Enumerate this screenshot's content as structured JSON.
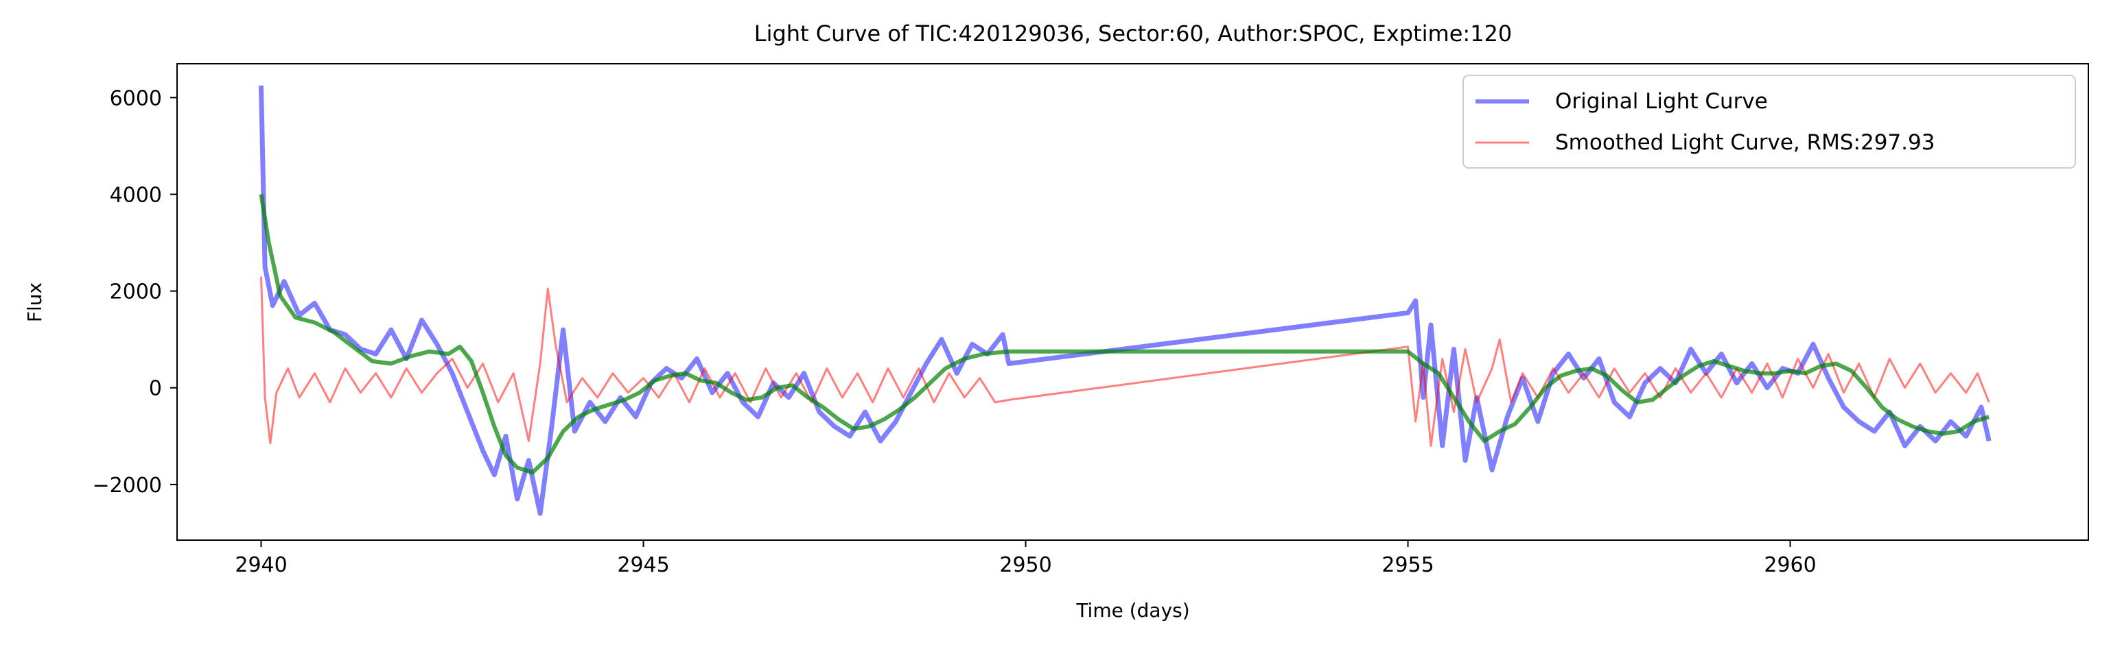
{
  "chart_data": {
    "type": "line",
    "title": "Light Curve of TIC:420129036, Sector:60, Author:SPOC, Exptime:120",
    "xlabel": "Time (days)",
    "ylabel": "Flux",
    "xlim": [
      2938.9,
      2963.9
    ],
    "ylim": [
      -3150,
      6700
    ],
    "xticks": [
      2940,
      2945,
      2950,
      2955,
      2960
    ],
    "yticks": [
      -2000,
      0,
      2000,
      4000,
      6000
    ],
    "xtick_labels": [
      "2940",
      "2945",
      "2950",
      "2955",
      "2960"
    ],
    "ytick_labels": [
      "−2000",
      "0",
      "2000",
      "4000",
      "6000"
    ],
    "grid": false,
    "legend_position": "top-right",
    "legend": [
      {
        "label": "Original Light Curve",
        "color": "#7777f2"
      },
      {
        "label": "Smoothed Light Curve, RMS:297.93",
        "color": "#f48080"
      }
    ],
    "series": [
      {
        "name": "Original Light Curve",
        "color": "#0000ff",
        "opacity": 0.5,
        "points": [
          [
            2940.0,
            6250
          ],
          [
            2940.05,
            2500
          ],
          [
            2940.15,
            1700
          ],
          [
            2940.3,
            2200
          ],
          [
            2940.5,
            1500
          ],
          [
            2940.7,
            1750
          ],
          [
            2940.9,
            1200
          ],
          [
            2941.1,
            1100
          ],
          [
            2941.3,
            800
          ],
          [
            2941.5,
            700
          ],
          [
            2941.7,
            1200
          ],
          [
            2941.9,
            600
          ],
          [
            2942.1,
            1400
          ],
          [
            2942.3,
            900
          ],
          [
            2942.5,
            300
          ],
          [
            2942.7,
            -500
          ],
          [
            2942.9,
            -1300
          ],
          [
            2943.05,
            -1800
          ],
          [
            2943.2,
            -1000
          ],
          [
            2943.35,
            -2300
          ],
          [
            2943.5,
            -1500
          ],
          [
            2943.65,
            -2600
          ],
          [
            2943.8,
            -800
          ],
          [
            2943.95,
            1200
          ],
          [
            2944.1,
            -900
          ],
          [
            2944.3,
            -300
          ],
          [
            2944.5,
            -700
          ],
          [
            2944.7,
            -200
          ],
          [
            2944.9,
            -600
          ],
          [
            2945.1,
            100
          ],
          [
            2945.3,
            400
          ],
          [
            2945.5,
            200
          ],
          [
            2945.7,
            600
          ],
          [
            2945.9,
            -100
          ],
          [
            2946.1,
            300
          ],
          [
            2946.3,
            -300
          ],
          [
            2946.5,
            -600
          ],
          [
            2946.7,
            100
          ],
          [
            2946.9,
            -200
          ],
          [
            2947.1,
            300
          ],
          [
            2947.3,
            -500
          ],
          [
            2947.5,
            -800
          ],
          [
            2947.7,
            -1000
          ],
          [
            2947.9,
            -500
          ],
          [
            2948.1,
            -1100
          ],
          [
            2948.3,
            -700
          ],
          [
            2948.5,
            -100
          ],
          [
            2948.7,
            500
          ],
          [
            2948.9,
            1000
          ],
          [
            2949.1,
            300
          ],
          [
            2949.3,
            900
          ],
          [
            2949.5,
            700
          ],
          [
            2949.7,
            1100
          ],
          [
            2949.78,
            500
          ],
          [
            2955.0,
            1550
          ],
          [
            2955.1,
            1800
          ],
          [
            2955.2,
            -200
          ],
          [
            2955.3,
            1300
          ],
          [
            2955.45,
            -1200
          ],
          [
            2955.6,
            800
          ],
          [
            2955.75,
            -1500
          ],
          [
            2955.9,
            -200
          ],
          [
            2956.1,
            -1700
          ],
          [
            2956.3,
            -600
          ],
          [
            2956.5,
            200
          ],
          [
            2956.7,
            -700
          ],
          [
            2956.9,
            300
          ],
          [
            2957.1,
            700
          ],
          [
            2957.3,
            200
          ],
          [
            2957.5,
            600
          ],
          [
            2957.7,
            -300
          ],
          [
            2957.9,
            -600
          ],
          [
            2958.1,
            100
          ],
          [
            2958.3,
            400
          ],
          [
            2958.5,
            100
          ],
          [
            2958.7,
            800
          ],
          [
            2958.9,
            300
          ],
          [
            2959.1,
            700
          ],
          [
            2959.3,
            100
          ],
          [
            2959.5,
            500
          ],
          [
            2959.7,
            0
          ],
          [
            2959.9,
            400
          ],
          [
            2960.1,
            300
          ],
          [
            2960.3,
            900
          ],
          [
            2960.5,
            200
          ],
          [
            2960.7,
            -400
          ],
          [
            2960.9,
            -700
          ],
          [
            2961.1,
            -900
          ],
          [
            2961.3,
            -500
          ],
          [
            2961.5,
            -1200
          ],
          [
            2961.7,
            -800
          ],
          [
            2961.9,
            -1100
          ],
          [
            2962.1,
            -700
          ],
          [
            2962.3,
            -1000
          ],
          [
            2962.5,
            -400
          ],
          [
            2962.6,
            -1100
          ]
        ]
      },
      {
        "name": "Smoothed Light Curve, RMS:297.93",
        "color": "#ff0000",
        "opacity": 0.5,
        "points": [
          [
            2940.0,
            2300
          ],
          [
            2940.05,
            -200
          ],
          [
            2940.12,
            -1150
          ],
          [
            2940.2,
            -100
          ],
          [
            2940.35,
            400
          ],
          [
            2940.5,
            -200
          ],
          [
            2940.7,
            300
          ],
          [
            2940.9,
            -300
          ],
          [
            2941.1,
            400
          ],
          [
            2941.3,
            -100
          ],
          [
            2941.5,
            300
          ],
          [
            2941.7,
            -200
          ],
          [
            2941.9,
            400
          ],
          [
            2942.1,
            -100
          ],
          [
            2942.3,
            300
          ],
          [
            2942.5,
            600
          ],
          [
            2942.7,
            0
          ],
          [
            2942.9,
            500
          ],
          [
            2943.1,
            -300
          ],
          [
            2943.3,
            300
          ],
          [
            2943.5,
            -1100
          ],
          [
            2943.65,
            500
          ],
          [
            2943.75,
            2050
          ],
          [
            2943.85,
            900
          ],
          [
            2944.0,
            -300
          ],
          [
            2944.2,
            200
          ],
          [
            2944.4,
            -200
          ],
          [
            2944.6,
            300
          ],
          [
            2944.8,
            -100
          ],
          [
            2945.0,
            200
          ],
          [
            2945.2,
            -200
          ],
          [
            2945.4,
            300
          ],
          [
            2945.6,
            -300
          ],
          [
            2945.8,
            400
          ],
          [
            2946.0,
            -200
          ],
          [
            2946.2,
            300
          ],
          [
            2946.4,
            -300
          ],
          [
            2946.6,
            400
          ],
          [
            2946.8,
            -200
          ],
          [
            2947.0,
            300
          ],
          [
            2947.2,
            -300
          ],
          [
            2947.4,
            400
          ],
          [
            2947.6,
            -200
          ],
          [
            2947.8,
            300
          ],
          [
            2948.0,
            -300
          ],
          [
            2948.2,
            400
          ],
          [
            2948.4,
            -200
          ],
          [
            2948.6,
            400
          ],
          [
            2948.8,
            -300
          ],
          [
            2949.0,
            300
          ],
          [
            2949.2,
            -200
          ],
          [
            2949.4,
            200
          ],
          [
            2949.6,
            -300
          ],
          [
            2949.78,
            -250
          ],
          [
            2955.0,
            850
          ],
          [
            2955.1,
            -700
          ],
          [
            2955.2,
            500
          ],
          [
            2955.3,
            -1200
          ],
          [
            2955.45,
            600
          ],
          [
            2955.6,
            -500
          ],
          [
            2955.75,
            800
          ],
          [
            2955.9,
            -300
          ],
          [
            2956.1,
            400
          ],
          [
            2956.2,
            1000
          ],
          [
            2956.35,
            -300
          ],
          [
            2956.5,
            300
          ],
          [
            2956.7,
            -200
          ],
          [
            2956.9,
            400
          ],
          [
            2957.1,
            -100
          ],
          [
            2957.3,
            300
          ],
          [
            2957.5,
            -200
          ],
          [
            2957.7,
            400
          ],
          [
            2957.9,
            -100
          ],
          [
            2958.1,
            300
          ],
          [
            2958.3,
            -200
          ],
          [
            2958.5,
            400
          ],
          [
            2958.7,
            -100
          ],
          [
            2958.9,
            300
          ],
          [
            2959.1,
            -200
          ],
          [
            2959.3,
            400
          ],
          [
            2959.5,
            -100
          ],
          [
            2959.7,
            500
          ],
          [
            2959.9,
            -200
          ],
          [
            2960.1,
            600
          ],
          [
            2960.3,
            0
          ],
          [
            2960.5,
            700
          ],
          [
            2960.7,
            -100
          ],
          [
            2960.9,
            500
          ],
          [
            2961.1,
            -200
          ],
          [
            2961.3,
            600
          ],
          [
            2961.5,
            0
          ],
          [
            2961.7,
            500
          ],
          [
            2961.9,
            -100
          ],
          [
            2962.1,
            300
          ],
          [
            2962.3,
            -100
          ],
          [
            2962.45,
            300
          ],
          [
            2962.6,
            -300
          ]
        ]
      },
      {
        "name": "",
        "color": "#008000",
        "opacity": 0.7,
        "points": [
          [
            2940.0,
            4000
          ],
          [
            2940.1,
            3000
          ],
          [
            2940.25,
            1900
          ],
          [
            2940.45,
            1450
          ],
          [
            2940.7,
            1350
          ],
          [
            2940.95,
            1150
          ],
          [
            2941.2,
            850
          ],
          [
            2941.45,
            550
          ],
          [
            2941.7,
            500
          ],
          [
            2941.95,
            650
          ],
          [
            2942.2,
            750
          ],
          [
            2942.45,
            700
          ],
          [
            2942.6,
            850
          ],
          [
            2942.75,
            550
          ],
          [
            2942.9,
            -100
          ],
          [
            2943.05,
            -800
          ],
          [
            2943.2,
            -1400
          ],
          [
            2943.35,
            -1650
          ],
          [
            2943.55,
            -1750
          ],
          [
            2943.75,
            -1450
          ],
          [
            2943.95,
            -900
          ],
          [
            2944.15,
            -600
          ],
          [
            2944.35,
            -450
          ],
          [
            2944.55,
            -350
          ],
          [
            2944.75,
            -250
          ],
          [
            2944.95,
            -100
          ],
          [
            2945.15,
            150
          ],
          [
            2945.35,
            250
          ],
          [
            2945.55,
            300
          ],
          [
            2945.75,
            150
          ],
          [
            2945.95,
            100
          ],
          [
            2946.15,
            -100
          ],
          [
            2946.35,
            -250
          ],
          [
            2946.55,
            -200
          ],
          [
            2946.75,
            0
          ],
          [
            2946.95,
            50
          ],
          [
            2947.15,
            -200
          ],
          [
            2947.35,
            -400
          ],
          [
            2947.55,
            -650
          ],
          [
            2947.75,
            -850
          ],
          [
            2947.95,
            -800
          ],
          [
            2948.15,
            -650
          ],
          [
            2948.35,
            -450
          ],
          [
            2948.55,
            -200
          ],
          [
            2948.75,
            100
          ],
          [
            2948.95,
            400
          ],
          [
            2949.2,
            600
          ],
          [
            2949.45,
            700
          ],
          [
            2949.78,
            750
          ],
          [
            2955.0,
            750
          ],
          [
            2955.2,
            500
          ],
          [
            2955.4,
            300
          ],
          [
            2955.6,
            -200
          ],
          [
            2955.8,
            -700
          ],
          [
            2956.0,
            -1100
          ],
          [
            2956.2,
            -900
          ],
          [
            2956.4,
            -750
          ],
          [
            2956.6,
            -400
          ],
          [
            2956.8,
            0
          ],
          [
            2957.0,
            250
          ],
          [
            2957.2,
            350
          ],
          [
            2957.4,
            400
          ],
          [
            2957.6,
            250
          ],
          [
            2957.8,
            -50
          ],
          [
            2958.0,
            -300
          ],
          [
            2958.2,
            -250
          ],
          [
            2958.4,
            0
          ],
          [
            2958.6,
            250
          ],
          [
            2958.8,
            450
          ],
          [
            2959.0,
            550
          ],
          [
            2959.2,
            450
          ],
          [
            2959.4,
            350
          ],
          [
            2959.6,
            300
          ],
          [
            2959.8,
            300
          ],
          [
            2960.0,
            350
          ],
          [
            2960.2,
            300
          ],
          [
            2960.4,
            450
          ],
          [
            2960.6,
            500
          ],
          [
            2960.8,
            350
          ],
          [
            2961.0,
            0
          ],
          [
            2961.2,
            -400
          ],
          [
            2961.4,
            -650
          ],
          [
            2961.6,
            -800
          ],
          [
            2961.8,
            -900
          ],
          [
            2962.0,
            -950
          ],
          [
            2962.2,
            -900
          ],
          [
            2962.4,
            -700
          ],
          [
            2962.6,
            -600
          ]
        ]
      }
    ]
  }
}
